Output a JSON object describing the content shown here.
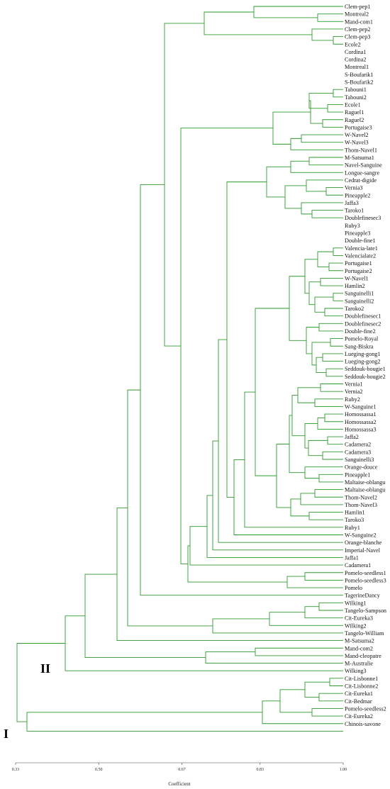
{
  "chart_data": {
    "type": "dendrogram",
    "xlabel": "Coefficient",
    "xlim": [
      0.33,
      1.0
    ],
    "ticks": [
      "0.33",
      "0.50",
      "0.67",
      "0.83",
      "1.00"
    ],
    "tick_values": [
      0.33,
      0.5,
      0.67,
      0.83,
      1.0
    ],
    "cluster_labels": [
      "I",
      "II"
    ],
    "leaves": [
      "Clem-pep1",
      "Montreal2",
      "Mand-com1",
      "Clem-pep2",
      "Clem-pep3",
      "Ecole2",
      "Cordina1",
      "Cordina2",
      "Montreal1",
      "S-Boufarik1",
      "S-Boufarik2",
      "Tabouni1",
      "Tabouni2",
      "Ecole1",
      "Raguel1",
      "Raguel2",
      "Portugaise3",
      "W-Navel2",
      "W-Navel3",
      "Thom-Navel1",
      "M-Satsuma1",
      "Navel-Sanguine",
      "Longue-sangre",
      "Cedrat-digide",
      "Vernia3",
      "Pineapple2",
      "Jaffa3",
      "Taroko1",
      "Doublefinesec3",
      "Ruby3",
      "Pineapple3",
      "Double-fine1",
      "Valencia-late1",
      "Valencialate2",
      "Portugaise1",
      "Portugaise2",
      "W-Navel1",
      "Hamlin2",
      "Sanguinelli1",
      "Sanguinelli2",
      "Taroko2",
      "Doublefinesec1",
      "Doublefinesec2",
      "Double-fine2",
      "Pomelo-Royal",
      "Sang-Biskra",
      "Lueging-gong1",
      "Lueging-gong2",
      "Seddouk-bougie1",
      "Seddouk-bougie2",
      "Vernia1",
      "Vernia2",
      "Ruby2",
      "W-Sanguine1",
      "Homossassa1",
      "Homossassa2",
      "Homossassa3",
      "Jaffa2",
      "Cadamera2",
      "Cadamera3",
      "Sanguinelli3",
      "Orange-douce",
      "Pineapple1",
      "Maltaise-oblangu",
      "Maltaise-oblangu",
      "Thom-Navel2",
      "Thom-Navel3",
      "Hamlin1",
      "Taroko3",
      "Ruby1",
      "W-Sanguine2",
      "Orange-blanche",
      "Imperial-Navel",
      "Jaffa1",
      "Cadamera1",
      "Pomelo-seedless1",
      "Pomelo-seedless3",
      "Pomelo",
      "TagerineDancy",
      "Wilking1",
      "Tangelo-Sampson",
      "Cit-Eureka3",
      "Wilking2",
      "Tangelo-William",
      "M-Satsuma2",
      "Mand-com2",
      "Mand-cleopatre",
      "M-Australie",
      "Wilking3",
      "Cit-Lisbonne1",
      "Cit-Lisbonne2",
      "Cit-Eureka1",
      "Cit-Bedmar",
      "Pomelo-seedless2",
      "Cit-Eureka2",
      "Chinois-savone"
    ]
  }
}
